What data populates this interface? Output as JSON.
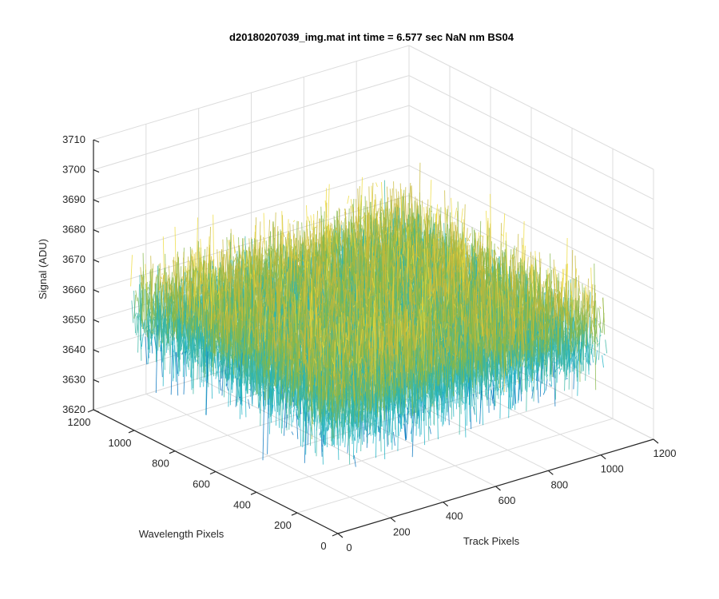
{
  "chart_data": {
    "type": "surface",
    "title": "d20180207039_img.mat int time = 6.577 sec  NaN nm BS04",
    "xlabel": "Track Pixels",
    "ylabel": "Wavelength Pixels",
    "zlabel": "Signal (ADU)",
    "xlim": [
      0,
      1200
    ],
    "ylim": [
      0,
      1200
    ],
    "zlim": [
      3620,
      3710
    ],
    "x_ticks": [
      0,
      200,
      400,
      600,
      800,
      1000,
      1200
    ],
    "y_ticks": [
      0,
      200,
      400,
      600,
      800,
      1000,
      1200
    ],
    "z_ticks": [
      3620,
      3630,
      3640,
      3650,
      3660,
      3670,
      3680,
      3690,
      3700,
      3710
    ],
    "data_extent": {
      "x": [
        0,
        1024
      ],
      "y": [
        0,
        1024
      ]
    },
    "signal": {
      "mean": 3660,
      "spread": 8,
      "min": 3623,
      "max": 3703
    },
    "colormap": [
      "#0072bd",
      "#1ab2c4",
      "#37b5a3",
      "#86b84a",
      "#c8b93a",
      "#eddb3b"
    ],
    "grid": true
  }
}
